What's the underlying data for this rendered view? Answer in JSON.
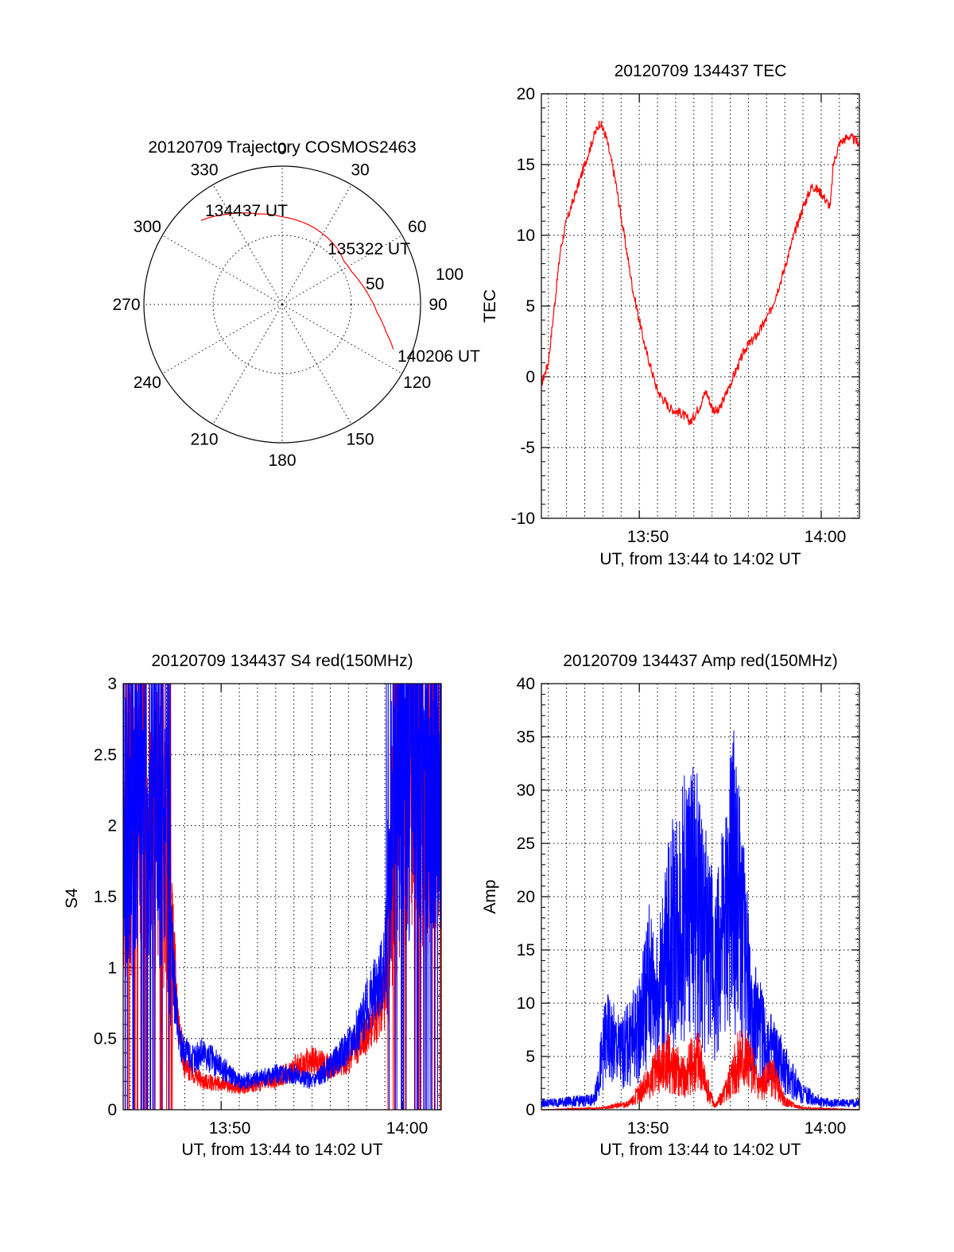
{
  "polar": {
    "title": "20120709 Trajectory COSMOS2463",
    "azimuth_labels": [
      "0",
      "30",
      "60",
      "90",
      "120",
      "150",
      "180",
      "210",
      "240",
      "270",
      "300",
      "330"
    ],
    "ring_labels": [
      "50",
      "100"
    ],
    "elevation_range": [
      0,
      90
    ],
    "marks": [
      {
        "label": "134437 UT",
        "az": 316,
        "el": 14
      },
      {
        "label": "135322 UT",
        "az": 55,
        "el": 41
      },
      {
        "label": "140206 UT",
        "az": 112,
        "el": 12
      }
    ],
    "track_color": "#ff0000",
    "track": [
      [
        316,
        14
      ],
      [
        330,
        22
      ],
      [
        345,
        29
      ],
      [
        360,
        33
      ],
      [
        15,
        35
      ],
      [
        30,
        37
      ],
      [
        45,
        39
      ],
      [
        55,
        41
      ],
      [
        65,
        40
      ],
      [
        75,
        37
      ],
      [
        85,
        33
      ],
      [
        95,
        28
      ],
      [
        105,
        20
      ],
      [
        112,
        12
      ]
    ]
  },
  "charts": [
    {
      "id": "tec",
      "type": "line",
      "title": "20120709 134437 TEC",
      "ylabel": "TEC",
      "xlabel": "UT, from 13:44 to 14:02 UT",
      "x_tick_labels": [
        "13:50",
        "14:00"
      ],
      "y_tick_labels": [
        "-10",
        "-5",
        "0",
        "5",
        "10",
        "15",
        "20"
      ],
      "ylim": [
        -10,
        20
      ],
      "grid": true,
      "series": [
        {
          "color": "#ff0000",
          "x": [
            "13:44:37",
            "13:45:00",
            "13:45:20",
            "13:45:40",
            "13:46:00",
            "13:46:30",
            "13:47:00",
            "13:47:30",
            "13:47:50",
            "13:48:10",
            "13:48:40",
            "13:49:10",
            "13:49:40",
            "13:50:20",
            "13:51:00",
            "13:51:40",
            "13:52:20",
            "13:52:50",
            "13:53:20",
            "13:53:40",
            "13:54:00",
            "13:54:20",
            "13:54:40",
            "13:55:00",
            "13:55:20",
            "13:55:50",
            "13:56:30",
            "13:57:10",
            "13:57:50",
            "13:58:30",
            "13:59:00",
            "13:59:30",
            "14:00:00",
            "14:00:30",
            "14:00:40",
            "14:01:00",
            "14:01:30",
            "14:02:06"
          ],
          "y": [
            -0.5,
            1,
            5,
            9,
            11,
            13,
            15,
            17,
            18,
            17,
            14,
            10,
            6,
            2,
            -1,
            -2.2,
            -2.6,
            -3.2,
            -2,
            -1,
            -2.2,
            -2.5,
            -1.5,
            -0.5,
            0.5,
            2,
            3,
            4.5,
            7,
            10,
            12,
            13.5,
            13,
            12,
            15,
            16.5,
            17,
            16.5
          ]
        }
      ]
    },
    {
      "id": "s4",
      "type": "line",
      "title": "20120709 134437 S4 red(150MHz)",
      "ylabel": "S4",
      "xlabel": "UT, from 13:44 to 14:02 UT",
      "x_tick_labels": [
        "13:50",
        "14:00"
      ],
      "y_tick_labels": [
        "0",
        "0.5",
        "1",
        "1.5",
        "2",
        "2.5",
        "3"
      ],
      "ylim": [
        0,
        3
      ],
      "grid": true,
      "series": [
        {
          "color": "#ff0000",
          "x": [
            "13:44:37",
            "13:45:30",
            "13:46:30",
            "13:47:00",
            "13:47:20",
            "13:47:40",
            "13:48:00",
            "13:48:30",
            "13:49:00",
            "13:50:00",
            "13:51:00",
            "13:52:00",
            "13:53:00",
            "13:54:00",
            "13:55:00",
            "13:56:00",
            "13:57:00",
            "13:57:40",
            "13:58:20",
            "13:59:00",
            "13:59:30",
            "14:00:00",
            "14:01:00",
            "14:02:06"
          ],
          "y": [
            1.8,
            2.3,
            2.1,
            1.8,
            1.2,
            0.6,
            0.3,
            0.25,
            0.2,
            0.18,
            0.15,
            0.18,
            0.2,
            0.3,
            0.35,
            0.3,
            0.35,
            0.5,
            0.6,
            0.8,
            2.0,
            2.5,
            2.4,
            2.1
          ]
        },
        {
          "color": "#0000ff",
          "x": [
            "13:44:37",
            "13:45:30",
            "13:46:30",
            "13:47:00",
            "13:47:20",
            "13:47:40",
            "13:48:00",
            "13:48:30",
            "13:49:00",
            "13:50:00",
            "13:51:00",
            "13:52:00",
            "13:53:00",
            "13:54:00",
            "13:55:00",
            "13:56:00",
            "13:57:00",
            "13:57:40",
            "13:58:20",
            "13:59:00",
            "13:59:30",
            "14:00:00",
            "14:01:00",
            "14:02:06"
          ],
          "y": [
            2.2,
            2.4,
            2.2,
            1.8,
            1.0,
            0.5,
            0.4,
            0.35,
            0.4,
            0.3,
            0.2,
            0.22,
            0.25,
            0.25,
            0.2,
            0.3,
            0.45,
            0.6,
            0.8,
            1.0,
            2.4,
            2.6,
            2.5,
            2.3
          ]
        }
      ]
    },
    {
      "id": "amp",
      "type": "line",
      "title": "20120709 134437 Amp red(150MHz)",
      "ylabel": "Amp",
      "xlabel": "UT, from 13:44 to 14:02 UT",
      "x_tick_labels": [
        "13:50",
        "14:00"
      ],
      "y_tick_labels": [
        "0",
        "5",
        "10",
        "15",
        "20",
        "25",
        "30",
        "35",
        "40"
      ],
      "ylim": [
        0,
        40
      ],
      "grid": true,
      "series": [
        {
          "color": "#0000ff",
          "x": [
            "13:44:37",
            "13:46:00",
            "13:47:30",
            "13:48:10",
            "13:49:00",
            "13:50:00",
            "13:50:30",
            "13:51:00",
            "13:51:40",
            "13:52:20",
            "13:53:00",
            "13:53:30",
            "13:54:10",
            "13:54:40",
            "13:55:10",
            "13:55:40",
            "13:56:10",
            "13:57:00",
            "13:58:00",
            "13:59:00",
            "14:00:00",
            "14:01:00",
            "14:02:06"
          ],
          "y": [
            0.8,
            1.0,
            1.2,
            9,
            7,
            10,
            16,
            14,
            21,
            25,
            27,
            22,
            18,
            22,
            29,
            22,
            12,
            8,
            5,
            2,
            1,
            0.8,
            0.8
          ]
        },
        {
          "color": "#ff0000",
          "x": [
            "13:44:37",
            "13:48:00",
            "13:49:30",
            "13:50:30",
            "13:51:30",
            "13:52:30",
            "13:53:10",
            "13:53:40",
            "13:54:10",
            "13:54:40",
            "13:55:10",
            "13:55:40",
            "13:56:10",
            "13:56:40",
            "13:57:20",
            "13:58:00",
            "13:59:00",
            "14:02:06"
          ],
          "y": [
            0,
            0.2,
            0.8,
            3.5,
            6,
            4,
            7,
            3,
            0.5,
            2,
            5,
            7,
            5,
            3,
            4,
            1,
            0.2,
            0
          ]
        }
      ]
    }
  ]
}
